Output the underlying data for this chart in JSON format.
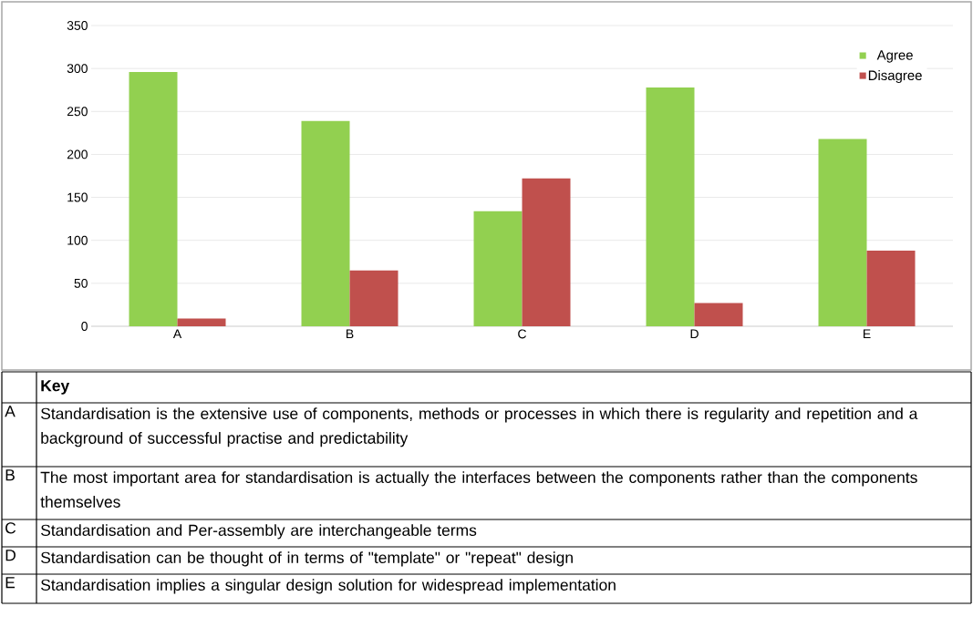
{
  "chart_data": {
    "type": "bar",
    "categories": [
      "A",
      "B",
      "C",
      "D",
      "E"
    ],
    "series": [
      {
        "name": "Agree",
        "color": "#92d050",
        "values": [
          296,
          239,
          134,
          278,
          218
        ]
      },
      {
        "name": "Disagree",
        "color": "#c0504d",
        "values": [
          9,
          65,
          172,
          27,
          88
        ]
      }
    ],
    "ylim": [
      0,
      350
    ],
    "yticks": [
      0,
      50,
      100,
      150,
      200,
      250,
      300,
      350
    ],
    "grid": "y",
    "legend": "top right",
    "annotations": [
      "**Key**",
      "Standardisation is the extensive use of components, methods or processes in which there is regularity and repetition and a background of successful practise and predictability",
      "The most important area for standardisation is actually the interfaces between the components rather than the components themselves",
      "Standardisation and Per-assembly are interchangeable terms",
      "Standardisation can be thought of in terms of \"template\" or \"repeat\" design",
      "Standardisation implies a singular design solution for widespread implementation"
    ]
  }
}
